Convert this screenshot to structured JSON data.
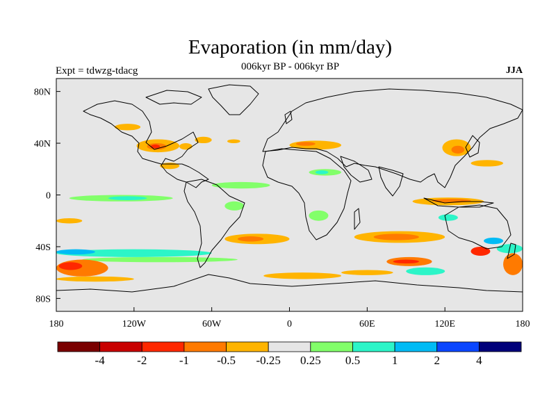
{
  "title": "Evaporation (in mm/day)",
  "subtitle": "006kyr BP - 006kyr BP",
  "left_label": "Expt = tdwzg-tdacg",
  "right_label": "JJA",
  "colors": {
    "land": "#e6e6e6",
    "coast": "#000000",
    "frame": "#000000"
  },
  "map_data": {
    "projection": "cylindrical-equidistant",
    "lon_range": [
      -180,
      180
    ],
    "lat_range": [
      -90,
      90
    ],
    "lon_ticks": [
      {
        "value": -180,
        "label": "180"
      },
      {
        "value": -120,
        "label": "120W"
      },
      {
        "value": -60,
        "label": "60W"
      },
      {
        "value": 0,
        "label": "0"
      },
      {
        "value": 60,
        "label": "60E"
      },
      {
        "value": 120,
        "label": "120E"
      },
      {
        "value": 180,
        "label": "180"
      }
    ],
    "lat_ticks": [
      {
        "value": 80,
        "label": "80N"
      },
      {
        "value": 40,
        "label": "40N"
      },
      {
        "value": 0,
        "label": "0"
      },
      {
        "value": -40,
        "label": "40S"
      },
      {
        "value": -80,
        "label": "80S"
      }
    ],
    "colorbar": {
      "colors": [
        "#7a0000",
        "#c80000",
        "#ff2800",
        "#ff7a00",
        "#ffb400",
        "#e6e6e6",
        "#82ff6a",
        "#2cf5c8",
        "#00bbf5",
        "#0a46ff",
        "#00007a"
      ],
      "labels": [
        "-4",
        "-2",
        "-1",
        "-0.5",
        "-0.25",
        "0.25",
        "0.5",
        "1",
        "2",
        "4"
      ]
    },
    "regions": [
      {
        "name": "n-pacific-blob",
        "lon": [
          -135,
          -115
        ],
        "lat": [
          50,
          55
        ],
        "level": 4
      },
      {
        "name": "n-america-west",
        "lon": [
          -118,
          -85
        ],
        "lat": [
          33,
          43
        ],
        "level": 4
      },
      {
        "name": "n-america-west-core",
        "lon": [
          -110,
          -95
        ],
        "lat": [
          35,
          40
        ],
        "level": 3
      },
      {
        "name": "n-america-west-deep",
        "lon": [
          -107,
          -100
        ],
        "lat": [
          36,
          39
        ],
        "level": 2
      },
      {
        "name": "n-america-east",
        "lon": [
          -85,
          -75
        ],
        "lat": [
          35,
          40
        ],
        "level": 4
      },
      {
        "name": "atlantic-nw",
        "lon": [
          -73,
          -60
        ],
        "lat": [
          40,
          45
        ],
        "level": 4
      },
      {
        "name": "gulf-mexico",
        "lon": [
          -100,
          -85
        ],
        "lat": [
          20,
          25
        ],
        "level": 4
      },
      {
        "name": "atlantic-mid-north",
        "lon": [
          -48,
          -38
        ],
        "lat": [
          40,
          43
        ],
        "level": 4
      },
      {
        "name": "mediterranean",
        "lon": [
          0,
          40
        ],
        "lat": [
          35,
          42
        ],
        "level": 4
      },
      {
        "name": "mediterranean-core",
        "lon": [
          5,
          20
        ],
        "lat": [
          38,
          41
        ],
        "level": 3
      },
      {
        "name": "east-asia",
        "lon": [
          118,
          140
        ],
        "lat": [
          30,
          43
        ],
        "level": 4
      },
      {
        "name": "east-asia-core",
        "lon": [
          125,
          135
        ],
        "lat": [
          32,
          38
        ],
        "level": 3
      },
      {
        "name": "nw-pacific",
        "lon": [
          140,
          165
        ],
        "lat": [
          22,
          27
        ],
        "level": 4
      },
      {
        "name": "tropical-atlantic-green",
        "lon": [
          -60,
          -15
        ],
        "lat": [
          5,
          10
        ],
        "level": 6
      },
      {
        "name": "africa-sahel-green",
        "lon": [
          15,
          40
        ],
        "lat": [
          15,
          20
        ],
        "level": 6
      },
      {
        "name": "africa-sahel-cyan",
        "lon": [
          20,
          30
        ],
        "lat": [
          16,
          19
        ],
        "level": 7
      },
      {
        "name": "tropical-pacific-east",
        "lon": [
          -170,
          -90
        ],
        "lat": [
          -5,
          0
        ],
        "level": 6
      },
      {
        "name": "tropical-pacific-east-cyan",
        "lon": [
          -140,
          -110
        ],
        "lat": [
          -4,
          -1
        ],
        "level": 7
      },
      {
        "name": "s-america-east",
        "lon": [
          -50,
          -35
        ],
        "lat": [
          -12,
          -5
        ],
        "level": 6
      },
      {
        "name": "africa-south",
        "lon": [
          15,
          30
        ],
        "lat": [
          -20,
          -12
        ],
        "level": 6
      },
      {
        "name": "indonesia",
        "lon": [
          95,
          150
        ],
        "lat": [
          -8,
          -2
        ],
        "level": 4
      },
      {
        "name": "indonesia-core",
        "lon": [
          110,
          140
        ],
        "lat": [
          -6,
          -3
        ],
        "level": 3
      },
      {
        "name": "nw-australia-cyan",
        "lon": [
          115,
          130
        ],
        "lat": [
          -20,
          -15
        ],
        "level": 7
      },
      {
        "name": "s-pacific-west",
        "lon": [
          -180,
          -160
        ],
        "lat": [
          -22,
          -18
        ],
        "level": 4
      },
      {
        "name": "s-atlantic-mid",
        "lon": [
          -50,
          0
        ],
        "lat": [
          -38,
          -30
        ],
        "level": 4
      },
      {
        "name": "s-atlantic-mid-core",
        "lon": [
          -40,
          -20
        ],
        "lat": [
          -36,
          -32
        ],
        "level": 3
      },
      {
        "name": "s-indian-ocean",
        "lon": [
          50,
          120
        ],
        "lat": [
          -37,
          -28
        ],
        "level": 4
      },
      {
        "name": "s-indian-ocean-core",
        "lon": [
          65,
          100
        ],
        "lat": [
          -35,
          -30
        ],
        "level": 3
      },
      {
        "name": "s-pacific-cyan-band",
        "lon": [
          -180,
          -60
        ],
        "lat": [
          -48,
          -42
        ],
        "level": 7
      },
      {
        "name": "s-pacific-blue-band",
        "lon": [
          -180,
          -150
        ],
        "lat": [
          -46,
          -42
        ],
        "level": 8
      },
      {
        "name": "s-pacific-green-band",
        "lon": [
          -160,
          -40
        ],
        "lat": [
          -52,
          -48
        ],
        "level": 6
      },
      {
        "name": "s-pacific-red",
        "lon": [
          -180,
          -140
        ],
        "lat": [
          -63,
          -50
        ],
        "level": 3
      },
      {
        "name": "s-pacific-red-core",
        "lon": [
          -178,
          -160
        ],
        "lat": [
          -58,
          -52
        ],
        "level": 2
      },
      {
        "name": "s-pacific-south-orange",
        "lon": [
          -180,
          -120
        ],
        "lat": [
          -67,
          -63
        ],
        "level": 4
      },
      {
        "name": "s-indian-red",
        "lon": [
          75,
          110
        ],
        "lat": [
          -55,
          -48
        ],
        "level": 3
      },
      {
        "name": "s-indian-red-core",
        "lon": [
          80,
          100
        ],
        "lat": [
          -53,
          -50
        ],
        "level": 2
      },
      {
        "name": "s-indian-cyan",
        "lon": [
          90,
          120
        ],
        "lat": [
          -62,
          -56
        ],
        "level": 7
      },
      {
        "name": "s-indian-south-orange",
        "lon": [
          40,
          80
        ],
        "lat": [
          -62,
          -58
        ],
        "level": 4
      },
      {
        "name": "tasman-red",
        "lon": [
          140,
          155
        ],
        "lat": [
          -47,
          -40
        ],
        "level": 2
      },
      {
        "name": "tasman-blue",
        "lon": [
          150,
          165
        ],
        "lat": [
          -38,
          -33
        ],
        "level": 8
      },
      {
        "name": "tasman-cyan",
        "lon": [
          160,
          180
        ],
        "lat": [
          -45,
          -38
        ],
        "level": 7
      },
      {
        "name": "s-pacific-east-red",
        "lon": [
          165,
          180
        ],
        "lat": [
          -62,
          -45
        ],
        "level": 3
      },
      {
        "name": "s-atlantic-south-orange",
        "lon": [
          -20,
          40
        ],
        "lat": [
          -65,
          -60
        ],
        "level": 4
      }
    ]
  }
}
